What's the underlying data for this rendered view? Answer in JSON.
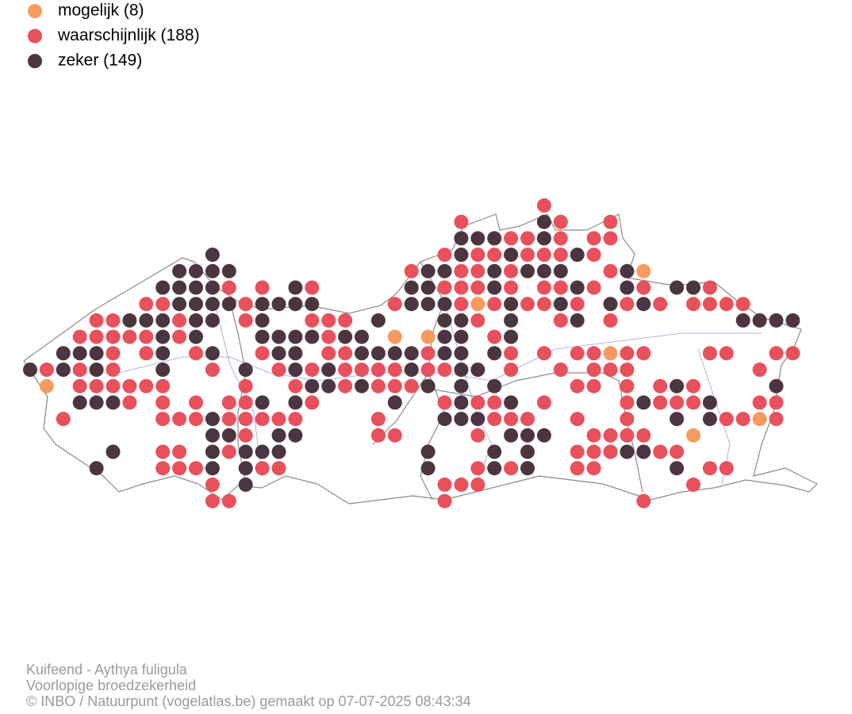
{
  "legend": [
    {
      "label": "mogelijk (8)",
      "color": "#f89a5f"
    },
    {
      "label": "waarschijnlijk (188)",
      "color": "#e8505b"
    },
    {
      "label": "zeker (149)",
      "color": "#4b3540"
    }
  ],
  "footer": {
    "species": "Kuifeend - Aythya fuligula",
    "subtitle": "Voorlopige broedzekerheid",
    "credit": "© INBO / Natuurpunt (vogelatlas.be) gemaakt op 07-07-2025 08:43:34"
  }
}
